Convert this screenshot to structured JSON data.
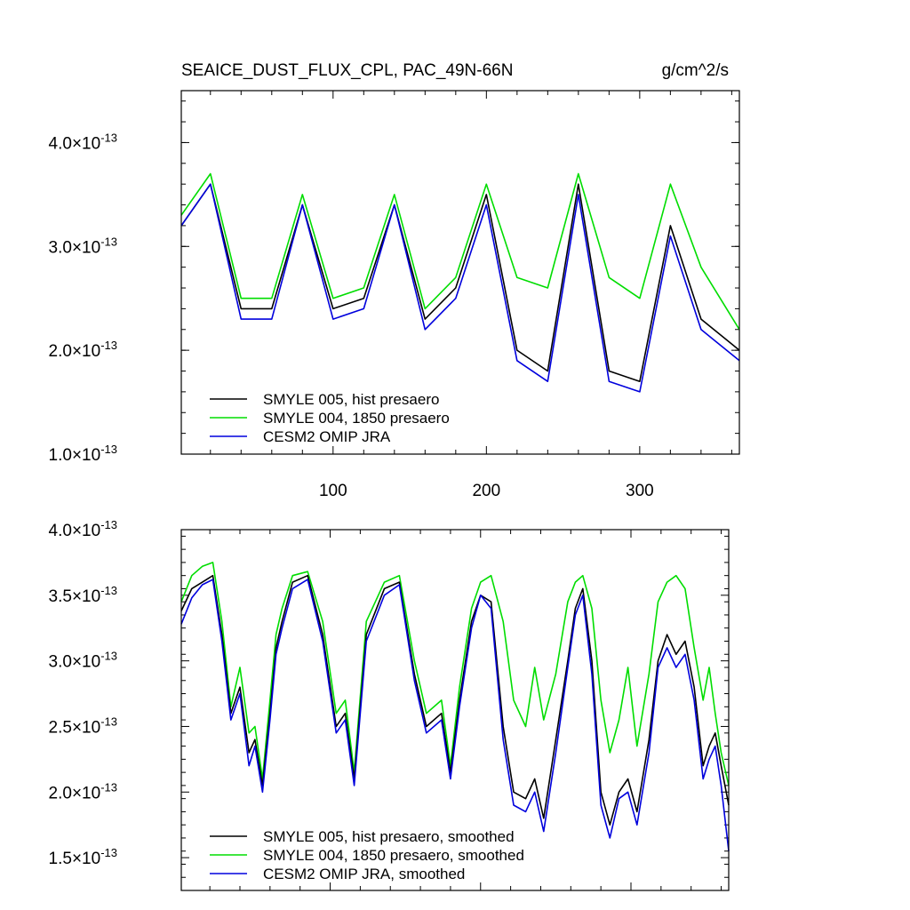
{
  "colors": {
    "black": "#000000",
    "green": "#00dd00",
    "blue": "#0000dd"
  },
  "chart_data": [
    {
      "type": "line",
      "title": "SEAICE_DUST_FLUX_CPL, PAC_49N-66N",
      "units": "g/cm^2/s",
      "xlabel": "",
      "ylabel": "",
      "xlim": [
        1,
        365
      ],
      "ylim": [
        1e-13,
        4.5e-13
      ],
      "x_ticks": [
        100,
        200,
        300
      ],
      "y_ticks": [
        {
          "mantissa": "1.0",
          "exp": "-13",
          "value": 1e-13
        },
        {
          "mantissa": "2.0",
          "exp": "-13",
          "value": 2e-13
        },
        {
          "mantissa": "3.0",
          "exp": "-13",
          "value": 3e-13
        },
        {
          "mantissa": "4.0",
          "exp": "-13",
          "value": 4e-13
        }
      ],
      "legend_position": "bottom-left",
      "series": [
        {
          "name": "SMYLE 005, hist presaero",
          "color_key": "black",
          "x": [
            1,
            20,
            40,
            60,
            80,
            100,
            120,
            140,
            160,
            180,
            200,
            220,
            240,
            260,
            280,
            300,
            320,
            340,
            365
          ],
          "values": [
            3.2e-13,
            3.6e-13,
            2.4e-13,
            2.4e-13,
            3.4e-13,
            2.4e-13,
            2.5e-13,
            3.4e-13,
            2.3e-13,
            2.6e-13,
            3.5e-13,
            2e-13,
            1.8e-13,
            3.6e-13,
            1.8e-13,
            1.7e-13,
            3.2e-13,
            2.3e-13,
            2e-13
          ]
        },
        {
          "name": "SMYLE 004, 1850 presaero",
          "color_key": "green",
          "x": [
            1,
            20,
            40,
            60,
            80,
            100,
            120,
            140,
            160,
            180,
            200,
            220,
            240,
            260,
            280,
            300,
            320,
            340,
            365
          ],
          "values": [
            3.3e-13,
            3.7e-13,
            2.5e-13,
            2.5e-13,
            3.5e-13,
            2.5e-13,
            2.6e-13,
            3.5e-13,
            2.4e-13,
            2.7e-13,
            3.6e-13,
            2.7e-13,
            2.6e-13,
            3.7e-13,
            2.7e-13,
            2.5e-13,
            3.6e-13,
            2.8e-13,
            2.2e-13
          ]
        },
        {
          "name": "CESM2 OMIP JRA",
          "color_key": "blue",
          "x": [
            1,
            20,
            40,
            60,
            80,
            100,
            120,
            140,
            160,
            180,
            200,
            220,
            240,
            260,
            280,
            300,
            320,
            340,
            365
          ],
          "values": [
            3.2e-13,
            3.6e-13,
            2.3e-13,
            2.3e-13,
            3.4e-13,
            2.3e-13,
            2.4e-13,
            3.4e-13,
            2.2e-13,
            2.5e-13,
            3.4e-13,
            1.9e-13,
            1.7e-13,
            3.5e-13,
            1.7e-13,
            1.6e-13,
            3.1e-13,
            2.2e-13,
            1.9e-13
          ]
        }
      ]
    },
    {
      "type": "line",
      "title": "",
      "xlabel": "",
      "ylabel": "",
      "xlim": [
        1,
        365
      ],
      "ylim": [
        1.25e-13,
        4e-13
      ],
      "x_ticks": [
        100,
        200,
        300
      ],
      "y_ticks": [
        {
          "mantissa": "1.5",
          "exp": "-13",
          "value": 1.5e-13
        },
        {
          "mantissa": "2.0",
          "exp": "-13",
          "value": 2e-13
        },
        {
          "mantissa": "2.5",
          "exp": "-13",
          "value": 2.5e-13
        },
        {
          "mantissa": "3.0",
          "exp": "-13",
          "value": 3e-13
        },
        {
          "mantissa": "3.5",
          "exp": "-13",
          "value": 3.5e-13
        },
        {
          "mantissa": "4.0",
          "exp": "-13",
          "value": 4e-13
        }
      ],
      "legend_position": "bottom-left",
      "series": [
        {
          "name": "SMYLE 005, hist presaero, smoothed",
          "color_key": "black",
          "x": [
            1,
            8,
            15,
            22,
            28,
            34,
            40,
            46,
            50,
            55,
            60,
            64,
            68,
            75,
            85,
            95,
            104,
            110,
            116,
            124,
            136,
            146,
            156,
            164,
            174,
            180,
            186,
            194,
            200,
            207,
            215,
            222,
            230,
            236,
            242,
            250,
            258,
            263,
            268,
            274,
            280,
            286,
            292,
            298,
            304,
            312,
            318,
            324,
            330,
            336,
            342,
            348,
            352,
            356,
            360,
            365
          ],
          "values": [
            3.38e-13,
            3.55e-13,
            3.6e-13,
            3.65e-13,
            3.2e-13,
            2.6e-13,
            2.8e-13,
            2.3e-13,
            2.4e-13,
            2.05e-13,
            2.6e-13,
            3.1e-13,
            3.3e-13,
            3.6e-13,
            3.65e-13,
            3.2e-13,
            2.5e-13,
            2.6e-13,
            2.1e-13,
            3.2e-13,
            3.55e-13,
            3.6e-13,
            2.9e-13,
            2.5e-13,
            2.6e-13,
            2.15e-13,
            2.7e-13,
            3.3e-13,
            3.5e-13,
            3.45e-13,
            2.5e-13,
            2e-13,
            1.95e-13,
            2.1e-13,
            1.8e-13,
            2.4e-13,
            3e-13,
            3.4e-13,
            3.55e-13,
            3e-13,
            2e-13,
            1.75e-13,
            2e-13,
            2.1e-13,
            1.85e-13,
            2.4e-13,
            3e-13,
            3.2e-13,
            3.05e-13,
            3.15e-13,
            2.8e-13,
            2.2e-13,
            2.35e-13,
            2.45e-13,
            2.2e-13,
            1.9e-13
          ]
        },
        {
          "name": "SMYLE 004, 1850 presaero, smoothed",
          "color_key": "green",
          "x": [
            1,
            8,
            15,
            22,
            28,
            34,
            40,
            46,
            50,
            55,
            60,
            64,
            68,
            75,
            85,
            95,
            104,
            110,
            116,
            124,
            136,
            146,
            156,
            164,
            174,
            180,
            186,
            194,
            200,
            207,
            215,
            222,
            230,
            236,
            242,
            250,
            258,
            263,
            268,
            274,
            280,
            286,
            292,
            298,
            304,
            312,
            318,
            324,
            330,
            336,
            342,
            348,
            352,
            356,
            360,
            365
          ],
          "values": [
            3.45e-13,
            3.65e-13,
            3.72e-13,
            3.75e-13,
            3.3e-13,
            2.65e-13,
            2.95e-13,
            2.45e-13,
            2.5e-13,
            2.1e-13,
            2.7e-13,
            3.2e-13,
            3.4e-13,
            3.65e-13,
            3.68e-13,
            3.3e-13,
            2.6e-13,
            2.7e-13,
            2.15e-13,
            3.3e-13,
            3.6e-13,
            3.65e-13,
            3e-13,
            2.6e-13,
            2.7e-13,
            2.2e-13,
            2.8e-13,
            3.4e-13,
            3.6e-13,
            3.65e-13,
            3.3e-13,
            2.7e-13,
            2.5e-13,
            2.95e-13,
            2.55e-13,
            2.9e-13,
            3.45e-13,
            3.6e-13,
            3.65e-13,
            3.4e-13,
            2.7e-13,
            2.3e-13,
            2.55e-13,
            2.95e-13,
            2.35e-13,
            2.9e-13,
            3.45e-13,
            3.6e-13,
            3.65e-13,
            3.55e-13,
            3.1e-13,
            2.7e-13,
            2.95e-13,
            2.6e-13,
            2.3e-13,
            2.05e-13
          ]
        },
        {
          "name": "CESM2 OMIP JRA, smoothed",
          "color_key": "blue",
          "x": [
            1,
            8,
            15,
            22,
            28,
            34,
            40,
            46,
            50,
            55,
            60,
            64,
            68,
            75,
            85,
            95,
            104,
            110,
            116,
            124,
            136,
            146,
            156,
            164,
            174,
            180,
            186,
            194,
            200,
            207,
            215,
            222,
            230,
            236,
            242,
            250,
            258,
            263,
            268,
            274,
            280,
            286,
            292,
            298,
            304,
            312,
            318,
            324,
            330,
            336,
            342,
            348,
            352,
            356,
            360,
            365
          ],
          "values": [
            3.28e-13,
            3.48e-13,
            3.58e-13,
            3.62e-13,
            3.15e-13,
            2.55e-13,
            2.75e-13,
            2.2e-13,
            2.35e-13,
            2e-13,
            2.55e-13,
            3.05e-13,
            3.25e-13,
            3.55e-13,
            3.62e-13,
            3.15e-13,
            2.45e-13,
            2.55e-13,
            2.05e-13,
            3.15e-13,
            3.5e-13,
            3.58e-13,
            2.85e-13,
            2.45e-13,
            2.55e-13,
            2.1e-13,
            2.65e-13,
            3.25e-13,
            3.5e-13,
            3.4e-13,
            2.4e-13,
            1.9e-13,
            1.85e-13,
            2e-13,
            1.7e-13,
            2.3e-13,
            2.95e-13,
            3.35e-13,
            3.5e-13,
            2.9e-13,
            1.9e-13,
            1.65e-13,
            1.95e-13,
            2e-13,
            1.75e-13,
            2.3e-13,
            2.95e-13,
            3.1e-13,
            2.95e-13,
            3.05e-13,
            2.7e-13,
            2.1e-13,
            2.25e-13,
            2.35e-13,
            2.05e-13,
            1.55e-13
          ]
        }
      ]
    }
  ]
}
